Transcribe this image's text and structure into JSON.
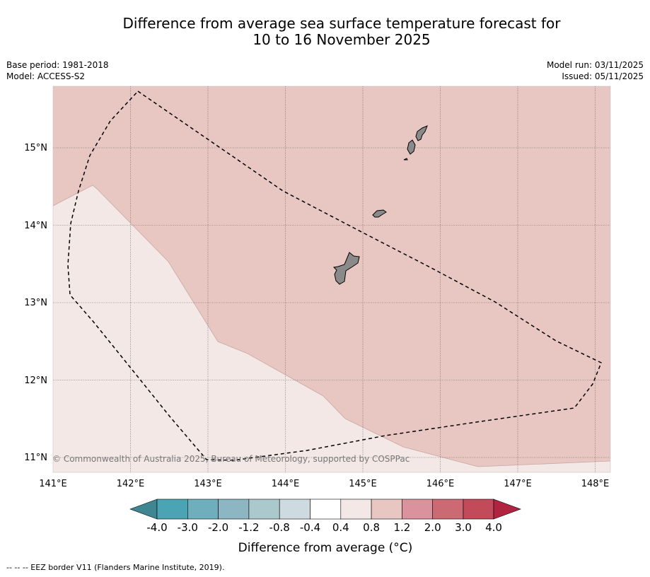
{
  "title": {
    "line1": "Difference from average sea surface temperature forecast for",
    "line2": "10 to 16 November 2025"
  },
  "meta_left": {
    "base_period": "Base period: 1981-2018",
    "model": "Model: ACCESS-S2"
  },
  "meta_right": {
    "model_run": "Model run: 03/11/2025",
    "issued": "Issued: 05/11/2025"
  },
  "map": {
    "lon_range": [
      141.0,
      148.2
    ],
    "lat_range": [
      10.8,
      15.8
    ],
    "lon_ticks": [
      "141°E",
      "142°E",
      "143°E",
      "144°E",
      "145°E",
      "146°E",
      "147°E",
      "148°E"
    ],
    "lat_ticks": [
      "11°N",
      "12°N",
      "13°N",
      "14°N",
      "15°N"
    ],
    "copyright": "© Commonwealth of Australia 2025, Bureau of Meteorology, supported by COSPPac",
    "regions": [
      {
        "name": "anomaly-0.4-to-0.8",
        "color": "#f4e8e7"
      },
      {
        "name": "anomaly-0.8-to-1.2",
        "color": "#e8c6c2"
      }
    ],
    "land_color": "#8a8a8a",
    "islands": [
      "guam",
      "rota",
      "tinian-saipan"
    ]
  },
  "colorbar": {
    "label": "Difference from average (°C)",
    "ticks": [
      "-4.0",
      "-3.0",
      "-2.0",
      "-1.2",
      "-0.8",
      "-0.4",
      "0.4",
      "0.8",
      "1.2",
      "2.0",
      "3.0",
      "4.0"
    ],
    "colors": [
      "#4aa4b4",
      "#6eaebd",
      "#8cb6c1",
      "#abc8cd",
      "#cddbe0",
      "#ffffff",
      "#f4e8e7",
      "#e8c6c2",
      "#da939c",
      "#cc6a74",
      "#c34a59"
    ],
    "under_color": "#3f8592",
    "over_color": "#b02341"
  },
  "footnote": "--  --  -- EEZ border V11 (Flanders Marine Institute, 2019)."
}
